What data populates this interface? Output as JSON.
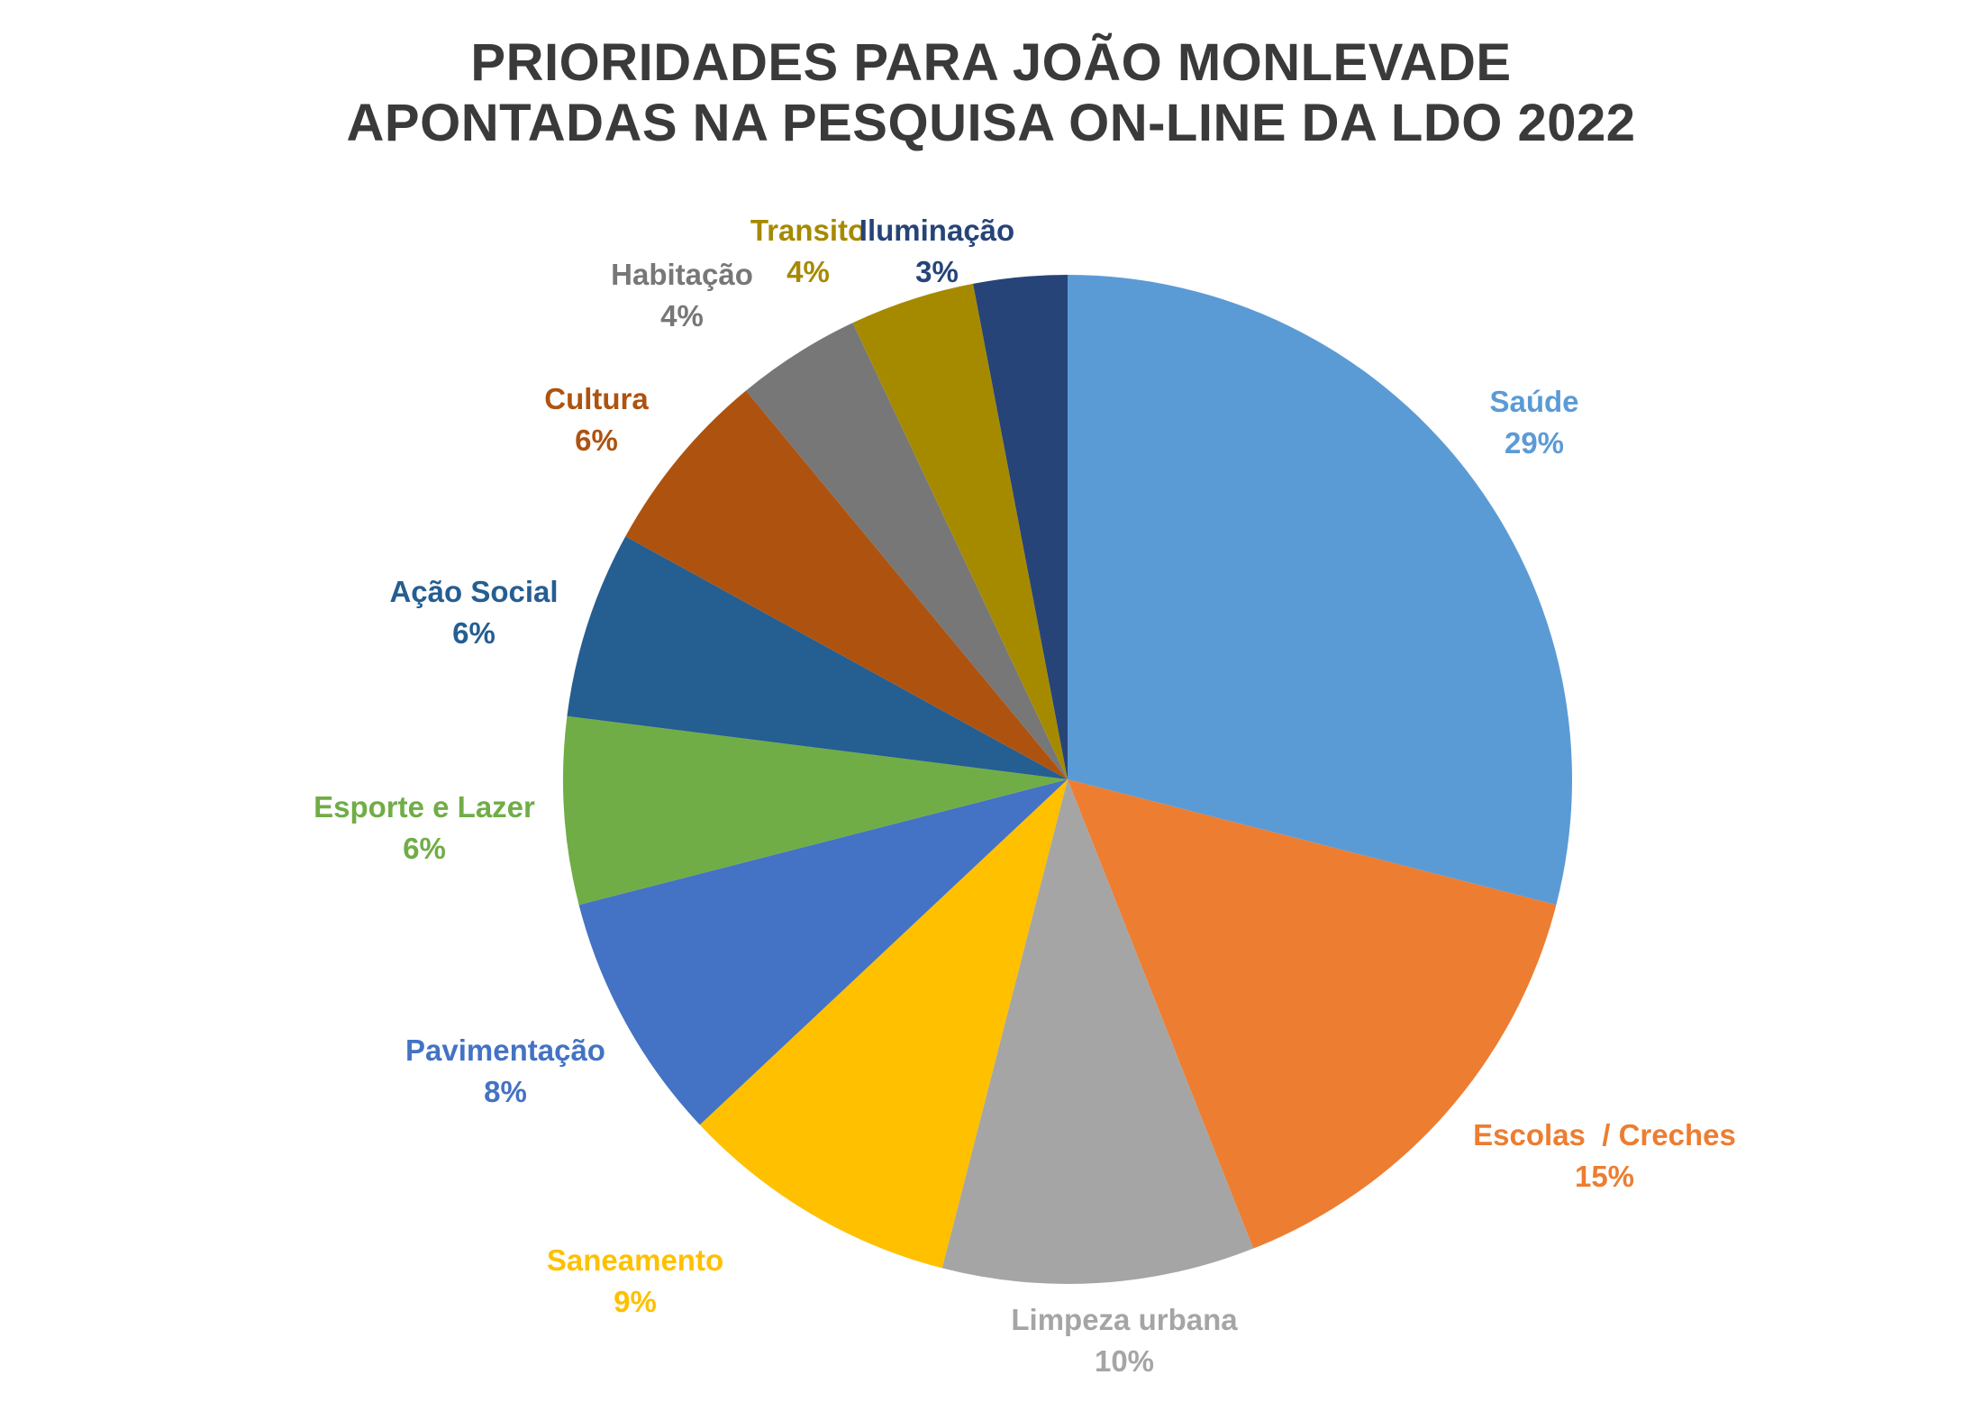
{
  "title": {
    "line1": "PRIORIDADES PARA JOÃO MONLEVADE",
    "line2": "APONTADAS NA PESQUISA ON-LINE DA LDO 2022"
  },
  "background_color": "#FFFFFF",
  "title_color": "#3A3A3A",
  "chart_data": {
    "type": "pie",
    "title": "PRIORIDADES PARA JOÃO MONLEVADE APONTADAS NA PESQUISA ON-LINE DA LDO 2022",
    "legend_position": "none",
    "data_labels": "category name + percentage, outside slices",
    "start_angle_deg": 0,
    "direction": "clockwise",
    "slices": [
      {
        "label": "Saúde",
        "value_pct": 29,
        "pct_text": "29%",
        "color": "#5B9BD5"
      },
      {
        "label": "Escolas  / Creches",
        "value_pct": 15,
        "pct_text": "15%",
        "color": "#ED7D31"
      },
      {
        "label": "Limpeza urbana",
        "value_pct": 10,
        "pct_text": "10%",
        "color": "#A5A5A5"
      },
      {
        "label": "Saneamento",
        "value_pct": 9,
        "pct_text": "9%",
        "color": "#FFC000"
      },
      {
        "label": "Pavimentação",
        "value_pct": 8,
        "pct_text": "8%",
        "color": "#4472C4"
      },
      {
        "label": "Esporte e Lazer",
        "value_pct": 6,
        "pct_text": "6%",
        "color": "#70AD47"
      },
      {
        "label": "Ação Social",
        "value_pct": 6,
        "pct_text": "6%",
        "color": "#255E91"
      },
      {
        "label": "Cultura",
        "value_pct": 6,
        "pct_text": "6%",
        "color": "#AE530F"
      },
      {
        "label": "Habitação",
        "value_pct": 4,
        "pct_text": "4%",
        "color": "#777777"
      },
      {
        "label": "Transito",
        "value_pct": 4,
        "pct_text": "4%",
        "color": "#A58A00"
      },
      {
        "label": "Iluminação",
        "value_pct": 3,
        "pct_text": "3%",
        "color": "#264478"
      }
    ]
  }
}
